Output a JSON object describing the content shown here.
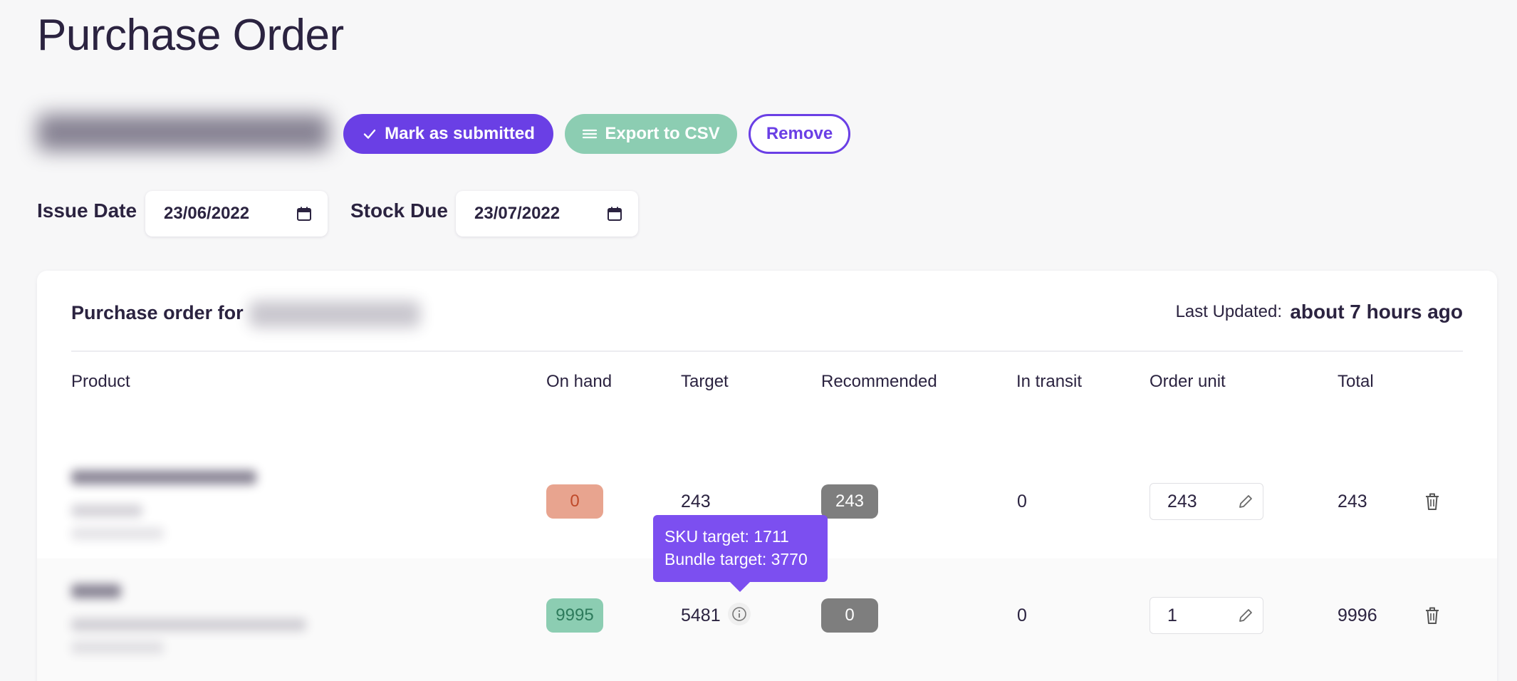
{
  "page": {
    "title": "Purchase Order"
  },
  "actions": {
    "submit_label": "Mark as submitted",
    "export_label": "Export to CSV",
    "remove_label": "Remove"
  },
  "dates": {
    "issue_label": "Issue Date",
    "issue_value": "23/06/2022",
    "stock_label": "Stock Due",
    "stock_value": "23/07/2022"
  },
  "card": {
    "title": "Purchase order for",
    "last_updated_label": "Last Updated:",
    "last_updated_value": "about 7 hours ago"
  },
  "columns": [
    "Product",
    "On hand",
    "Target",
    "Recommended",
    "In transit",
    "Order unit",
    "Total"
  ],
  "rows": [
    {
      "on_hand": "0",
      "on_hand_status": "low",
      "target": "243",
      "recommended": "243",
      "in_transit": "0",
      "order_unit": "243",
      "total": "243"
    },
    {
      "on_hand": "9995",
      "on_hand_status": "ok",
      "target": "5481",
      "recommended": "0",
      "in_transit": "0",
      "order_unit": "1",
      "total": "9996"
    }
  ],
  "tooltip": {
    "line1": "SKU target: 1711",
    "line2": "Bundle target: 3770"
  },
  "colors": {
    "accent": "#6a3fe5",
    "export": "#8ccdb2",
    "low_stock": "#e8a48f",
    "ok_stock": "#8ccdb2",
    "recommended": "#7e7e7e",
    "tooltip": "#7c4ff0"
  }
}
